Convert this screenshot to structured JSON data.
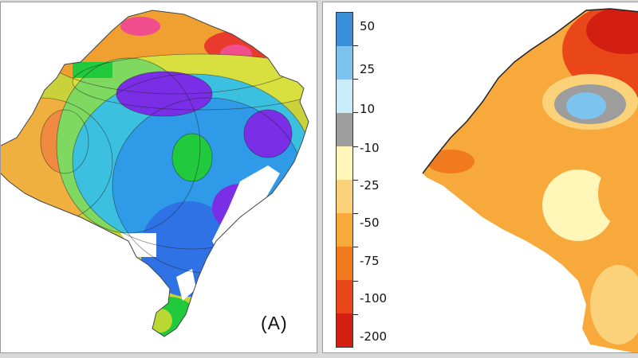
{
  "panel_a": {
    "label": "(A)"
  },
  "panel_b": {
    "legend": {
      "tick_labels": [
        "50",
        "25",
        "10",
        "-10",
        "-25",
        "-50",
        "-75",
        "-100",
        "-200"
      ],
      "classes": [
        {
          "color": "#3b8fd8"
        },
        {
          "color": "#7cc4ef"
        },
        {
          "color": "#c9ecfb"
        },
        {
          "color": "#9d9d9d"
        },
        {
          "color": "#fff6b8"
        },
        {
          "color": "#fbd27a"
        },
        {
          "color": "#f8a93c"
        },
        {
          "color": "#f27a1e"
        },
        {
          "color": "#e9461a"
        },
        {
          "color": "#d31f12"
        }
      ]
    }
  },
  "colors": {
    "purple": "#7a2ee6",
    "blue": "#2f72e6",
    "cyan": "#3cc0e0",
    "green": "#21c93c",
    "yellow_green": "#b9d832",
    "orange": "#f0a030",
    "red": "#ea3a2e",
    "pink": "#f04e8c"
  }
}
